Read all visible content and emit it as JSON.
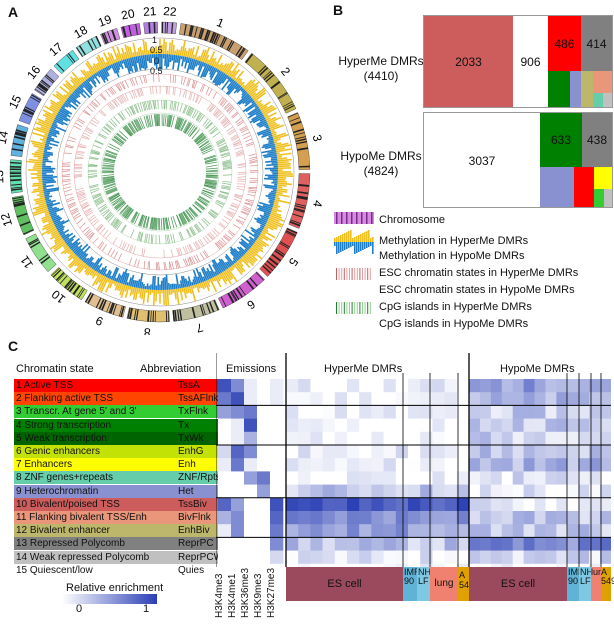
{
  "panels": {
    "a": "A",
    "b": "B",
    "c": "C"
  },
  "panel_a": {
    "chromosomes": [
      "1",
      "2",
      "3",
      "4",
      "5",
      "6",
      "7",
      "8",
      "9",
      "10",
      "11",
      "12",
      "13",
      "14",
      "15",
      "16",
      "17",
      "18",
      "19",
      "20",
      "21",
      "22"
    ],
    "scale_labels": [
      "1",
      "0.5",
      "0",
      "0.5"
    ]
  },
  "panel_b": {
    "hyper": {
      "label": "HyperMe DMRs",
      "count": "(4410)",
      "values": [
        "2033",
        "906",
        "486",
        "414"
      ]
    },
    "hypo": {
      "label": "HypoMe DMRs",
      "count": "(4824)",
      "values": [
        "3037",
        "633",
        "438"
      ]
    }
  },
  "legend": [
    "Chromosome",
    "Methylation in HyperMe DMRs",
    "Methylation in HypoMe DMRs",
    "ESC chromatin states in HyperMe DMRs",
    "ESC chromatin states in HypoMe DMRs",
    "CpG islands in HyperMe DMRs",
    "CpG islands in HypoMe DMRs"
  ],
  "panel_c": {
    "header_state": "Chromatin state",
    "header_abbrev": "Abbreviation",
    "header_emissions": "Emissions",
    "header_hyper": "HyperMe DMRs",
    "header_hypo": "HypoMe DMRs",
    "states": [
      {
        "state": "1 Active TSS",
        "abbr": "TssA",
        "color": "#ff0000"
      },
      {
        "state": "2 Flanking active TSS",
        "abbr": "TssAFlnk",
        "color": "#ff4500"
      },
      {
        "state": "3 Transcr. At gene 5' and 3'",
        "abbr": "TxFlnk",
        "color": "#32cd32"
      },
      {
        "state": "4 Strong transcription",
        "abbr": "Tx",
        "color": "#008000"
      },
      {
        "state": "5 Weak transcription",
        "abbr": "TxWk",
        "color": "#006400"
      },
      {
        "state": "6 Genic enhancers",
        "abbr": "EnhG",
        "color": "#c2e105"
      },
      {
        "state": "7 Enhancers",
        "abbr": "Enh",
        "color": "#ffff00"
      },
      {
        "state": "8 ZNF genes+repeats",
        "abbr": "ZNF/Rpts",
        "color": "#66cdaa"
      },
      {
        "state": "9 Heterochromatin",
        "abbr": "Het",
        "color": "#8a91d0"
      },
      {
        "state": "10 Bivalent/poised TSS",
        "abbr": "TssBiv",
        "color": "#cd5c5c"
      },
      {
        "state": "11 Flanking bivalent TSS/Enh",
        "abbr": "BivFlnk",
        "color": "#e9967a"
      },
      {
        "state": "12 Bivalent enhancer",
        "abbr": "EnhBiv",
        "color": "#bdb76b"
      },
      {
        "state": "13 Repressed Polycomb",
        "abbr": "ReprPC",
        "color": "#808080"
      },
      {
        "state": "14 Weak repressed Polycomb",
        "abbr": "ReprPCWk",
        "color": "#c0c0c0"
      },
      {
        "state": "15 Quiescent/low",
        "abbr": "Quies",
        "color": "#ffffff"
      }
    ],
    "marks": [
      "H3K4me3",
      "H3K4me1",
      "H3K36me3",
      "H3K9me3",
      "H3K27me3"
    ],
    "tissues_hyper": [
      "ES cell",
      "IMR 90",
      "NH LF",
      "lung",
      "A 549"
    ],
    "tissues_hypo": [
      "ES cell",
      "IMR 90",
      "NH LF",
      "lung",
      "A 549"
    ],
    "colorbar_title": "Relative enrichment",
    "colorbar_min": "0",
    "colorbar_max": "1"
  }
}
